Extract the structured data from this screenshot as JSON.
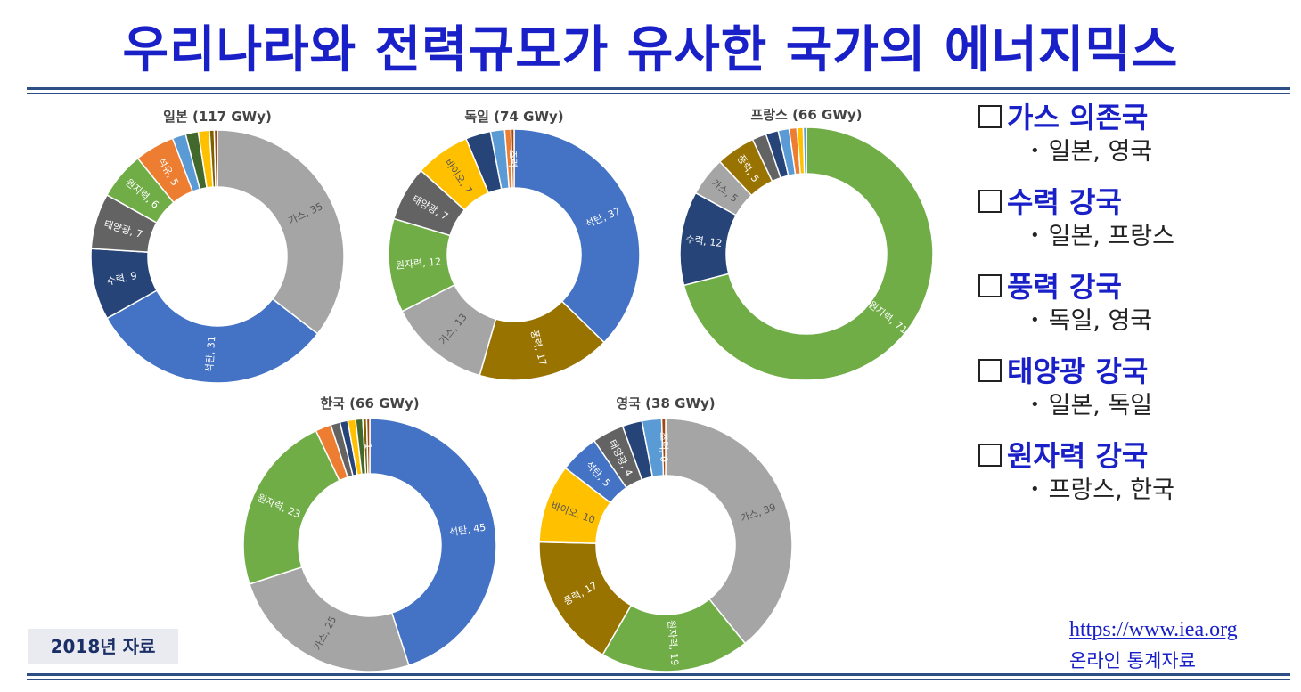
{
  "title": "우리나라와 전력규모가 유사한 국가의 에너지믹스",
  "colors": {
    "석탄": "#4472c4",
    "가스": "#a5a5a5",
    "수력": "#264478",
    "태양광": "#636363",
    "원자력": "#70ad47",
    "석유": "#ed7d31",
    "바이오": "#ffc000",
    "풍력": "#997300",
    "조력": "#9e480e",
    "기타1": "#5b9bd5",
    "기타2": "#43682b",
    "기타3": "#ffc000",
    "기타4": "#7f6000"
  },
  "chart_data": [
    {
      "type": "pie",
      "donut": true,
      "title": "일본 (117 GWy)",
      "start_angle": 0,
      "slices": [
        {
          "label": "가스, 35",
          "name": "가스",
          "value": 35
        },
        {
          "label": "석탄, 31",
          "name": "석탄",
          "value": 31
        },
        {
          "label": "수력, 9",
          "name": "수력",
          "value": 9
        },
        {
          "label": "태양광, 7",
          "name": "태양광",
          "value": 7
        },
        {
          "label": "원자력, 6",
          "name": "원자력",
          "value": 6
        },
        {
          "label": "석유, 5",
          "name": "석유",
          "value": 5
        },
        {
          "label": "",
          "name": "기타1",
          "value": 1.7
        },
        {
          "label": "",
          "name": "기타2",
          "value": 1.6
        },
        {
          "label": "",
          "name": "기타3",
          "value": 1.4
        },
        {
          "label": "",
          "name": "기타4",
          "value": 0.6
        },
        {
          "label": "",
          "name": "조력",
          "value": 0.4
        }
      ]
    },
    {
      "type": "pie",
      "donut": true,
      "title": "독일 (74 GWy)",
      "start_angle": 0,
      "slices": [
        {
          "label": "석탄, 37",
          "name": "석탄",
          "value": 37
        },
        {
          "label": "풍력, 17",
          "name": "풍력",
          "value": 17
        },
        {
          "label": "가스, 13",
          "name": "가스",
          "value": 13
        },
        {
          "label": "원자력, 12",
          "name": "원자력",
          "value": 12
        },
        {
          "label": "태양광, 7",
          "name": "태양광",
          "value": 7
        },
        {
          "label": "바이오, 7",
          "name": "바이오",
          "value": 7
        },
        {
          "label": "",
          "name": "수력",
          "value": 3.2
        },
        {
          "label": "",
          "name": "기타1",
          "value": 1.8
        },
        {
          "label": "",
          "name": "석유",
          "value": 0.8
        },
        {
          "label": "조력",
          "name": "조력",
          "value": 0.4
        }
      ]
    },
    {
      "type": "pie",
      "donut": true,
      "title": "프랑스 (66 GWy)",
      "start_angle": 0,
      "slices": [
        {
          "label": "원자력, 71",
          "name": "원자력",
          "value": 71
        },
        {
          "label": "수력, 12",
          "name": "수력",
          "value": 12
        },
        {
          "label": "가스, 5",
          "name": "가스",
          "value": 5
        },
        {
          "label": "풍력, 5",
          "name": "풍력",
          "value": 5
        },
        {
          "label": "",
          "name": "태양광",
          "value": 1.8
        },
        {
          "label": "",
          "name": "수력",
          "value": 1.6
        },
        {
          "label": "",
          "name": "기타1",
          "value": 1.4
        },
        {
          "label": "",
          "name": "석유",
          "value": 1
        },
        {
          "label": "",
          "name": "바이오",
          "value": 0.8
        },
        {
          "label": "",
          "name": "기타1",
          "value": 0.4
        }
      ]
    },
    {
      "type": "pie",
      "donut": true,
      "title": "한국 (66 GWy)",
      "start_angle": 0,
      "slices": [
        {
          "label": "석탄, 45",
          "name": "석탄",
          "value": 45
        },
        {
          "label": "가스, 25",
          "name": "가스",
          "value": 25
        },
        {
          "label": "원자력, 23",
          "name": "원자력",
          "value": 23
        },
        {
          "label": "",
          "name": "석유",
          "value": 2
        },
        {
          "label": "",
          "name": "태양광",
          "value": 1.2
        },
        {
          "label": "",
          "name": "수력",
          "value": 1
        },
        {
          "label": "",
          "name": "바이오",
          "value": 1
        },
        {
          "label": "",
          "name": "기타2",
          "value": 0.9
        },
        {
          "label": "",
          "name": "기타4",
          "value": 0.5
        },
        {
          "label": "1",
          "name": "조력",
          "value": 0.4
        }
      ]
    },
    {
      "type": "pie",
      "donut": true,
      "title": "영국 (38 GWy)",
      "start_angle": 0,
      "slices": [
        {
          "label": "가스, 39",
          "name": "가스",
          "value": 39
        },
        {
          "label": "원자력, 19",
          "name": "원자력",
          "value": 19
        },
        {
          "label": "풍력, 17",
          "name": "풍력",
          "value": 17
        },
        {
          "label": "바이오, 10",
          "name": "바이오",
          "value": 10
        },
        {
          "label": "석탄, 5",
          "name": "석탄",
          "value": 5
        },
        {
          "label": "태양광, 4",
          "name": "태양광",
          "value": 4
        },
        {
          "label": "",
          "name": "수력",
          "value": 2.5
        },
        {
          "label": "",
          "name": "기타1",
          "value": 2.5
        },
        {
          "label": "조력, 0",
          "name": "조력",
          "value": 0.5
        }
      ]
    }
  ],
  "categories": [
    {
      "heading": "가스 의존국",
      "countries": "일본, 영국"
    },
    {
      "heading": "수력 강국",
      "countries": "일본, 프랑스"
    },
    {
      "heading": "풍력 강국",
      "countries": "독일, 영국"
    },
    {
      "heading": "태양광 강국",
      "countries": "일본, 독일"
    },
    {
      "heading": "원자력 강국",
      "countries": "프랑스, 한국"
    }
  ],
  "year_label": "2018년 자료",
  "source": {
    "url": "https://www.iea.org",
    "label": "온라인 통계자료"
  }
}
